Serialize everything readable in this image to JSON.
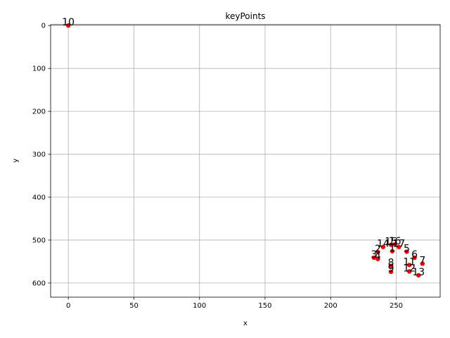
{
  "chart_data": {
    "type": "scatter",
    "title": "keyPoints",
    "xlabel": "x",
    "ylabel": "y",
    "xlim": [
      -13.5,
      283.5
    ],
    "ylim": [
      633,
      -2
    ],
    "y_inverted": true,
    "grid": true,
    "marker_color": "#ff0000",
    "xticks": [
      0,
      50,
      100,
      150,
      200,
      250
    ],
    "yticks": [
      0,
      100,
      200,
      300,
      400,
      500,
      600
    ],
    "points": [
      {
        "label": "1",
        "x": 247,
        "y": 526
      },
      {
        "label": "2",
        "x": 236,
        "y": 528
      },
      {
        "label": "3",
        "x": 233,
        "y": 541
      },
      {
        "label": "4",
        "x": 236,
        "y": 544
      },
      {
        "label": "5",
        "x": 258,
        "y": 527
      },
      {
        "label": "6",
        "x": 264,
        "y": 541
      },
      {
        "label": "7",
        "x": 270,
        "y": 555
      },
      {
        "label": "8",
        "x": 246,
        "y": 560
      },
      {
        "label": "9",
        "x": 246,
        "y": 574
      },
      {
        "label": "10",
        "x": 0,
        "y": 0
      },
      {
        "label": "11",
        "x": 260,
        "y": 558
      },
      {
        "label": "12",
        "x": 260,
        "y": 573
      },
      {
        "label": "13",
        "x": 267,
        "y": 582
      },
      {
        "label": "14",
        "x": 240,
        "y": 516
      },
      {
        "label": "15",
        "x": 246,
        "y": 511
      },
      {
        "label": "16",
        "x": 249,
        "y": 510
      },
      {
        "label": "17",
        "x": 252,
        "y": 516
      }
    ]
  }
}
